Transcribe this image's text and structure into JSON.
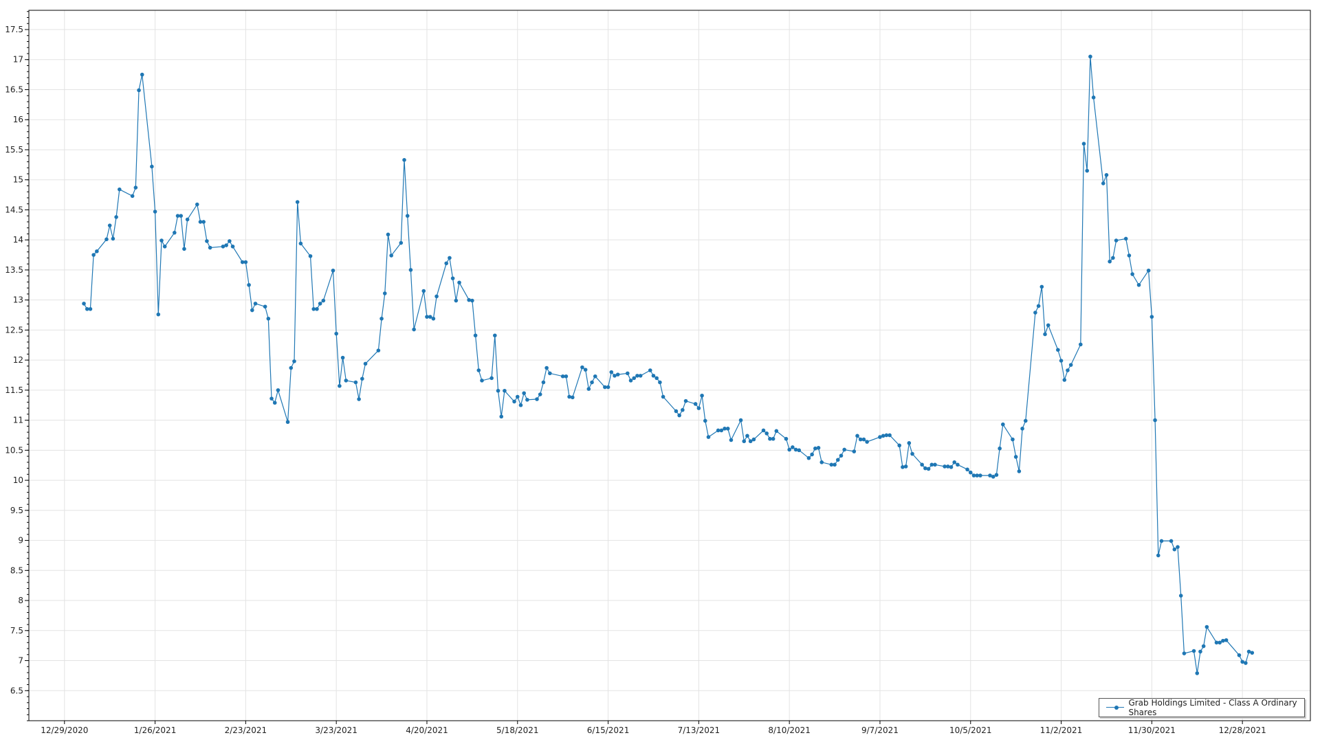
{
  "chart_data": {
    "type": "line",
    "title": "",
    "xlabel": "",
    "ylabel": "",
    "xlim": [
      "2020-12-18",
      "2022-01-18"
    ],
    "ylim": [
      6.0,
      17.82
    ],
    "grid": true,
    "legend_position": "bottom-right",
    "x_ticks": [
      "2020-12-29",
      "2021-01-26",
      "2021-02-23",
      "2021-03-23",
      "2021-04-20",
      "2021-05-18",
      "2021-06-15",
      "2021-07-13",
      "2021-08-10",
      "2021-09-07",
      "2021-10-05",
      "2021-11-02",
      "2021-11-30",
      "2021-12-28"
    ],
    "x_tick_labels": [
      "12/29/2020",
      "1/26/2021",
      "2/23/2021",
      "3/23/2021",
      "4/20/2021",
      "5/18/2021",
      "6/15/2021",
      "7/13/2021",
      "8/10/2021",
      "9/7/2021",
      "10/5/2021",
      "11/2/2021",
      "11/30/2021",
      "12/28/2021"
    ],
    "y_ticks": [
      6.5,
      7,
      7.5,
      8,
      8.5,
      9,
      9.5,
      10,
      10.5,
      11,
      11.5,
      12,
      12.5,
      13,
      13.5,
      14,
      14.5,
      15,
      15.5,
      16,
      16.5,
      17,
      17.5
    ],
    "y_tick_labels": [
      "6.5",
      "7",
      "7.5",
      "8",
      "8.5",
      "9",
      "9.5",
      "10",
      "10.5",
      "11",
      "11.5",
      "12",
      "12.5",
      "13",
      "13.5",
      "14",
      "14.5",
      "15",
      "15.5",
      "16",
      "16.5",
      "17",
      "17.5"
    ],
    "color": "#1f77b4",
    "series": [
      {
        "name": "Grab Holdings Limited - Class A Ordinary Shares",
        "x": [
          "2021-01-04",
          "2021-01-05",
          "2021-01-06",
          "2021-01-07",
          "2021-01-08",
          "2021-01-11",
          "2021-01-12",
          "2021-01-13",
          "2021-01-14",
          "2021-01-15",
          "2021-01-19",
          "2021-01-20",
          "2021-01-21",
          "2021-01-22",
          "2021-01-25",
          "2021-01-26",
          "2021-01-27",
          "2021-01-28",
          "2021-01-29",
          "2021-02-01",
          "2021-02-02",
          "2021-02-03",
          "2021-02-04",
          "2021-02-05",
          "2021-02-08",
          "2021-02-09",
          "2021-02-10",
          "2021-02-11",
          "2021-02-12",
          "2021-02-16",
          "2021-02-17",
          "2021-02-18",
          "2021-02-19",
          "2021-02-22",
          "2021-02-23",
          "2021-02-24",
          "2021-02-25",
          "2021-02-26",
          "2021-03-01",
          "2021-03-02",
          "2021-03-03",
          "2021-03-04",
          "2021-03-05",
          "2021-03-08",
          "2021-03-09",
          "2021-03-10",
          "2021-03-11",
          "2021-03-12",
          "2021-03-15",
          "2021-03-16",
          "2021-03-17",
          "2021-03-18",
          "2021-03-19",
          "2021-03-22",
          "2021-03-23",
          "2021-03-24",
          "2021-03-25",
          "2021-03-26",
          "2021-03-29",
          "2021-03-30",
          "2021-03-31",
          "2021-04-01",
          "2021-04-05",
          "2021-04-06",
          "2021-04-07",
          "2021-04-08",
          "2021-04-09",
          "2021-04-12",
          "2021-04-13",
          "2021-04-14",
          "2021-04-15",
          "2021-04-16",
          "2021-04-19",
          "2021-04-20",
          "2021-04-21",
          "2021-04-22",
          "2021-04-23",
          "2021-04-26",
          "2021-04-27",
          "2021-04-28",
          "2021-04-29",
          "2021-04-30",
          "2021-05-03",
          "2021-05-04",
          "2021-05-05",
          "2021-05-06",
          "2021-05-07",
          "2021-05-10",
          "2021-05-11",
          "2021-05-12",
          "2021-05-13",
          "2021-05-14",
          "2021-05-17",
          "2021-05-18",
          "2021-05-19",
          "2021-05-20",
          "2021-05-21",
          "2021-05-24",
          "2021-05-25",
          "2021-05-26",
          "2021-05-27",
          "2021-05-28",
          "2021-06-01",
          "2021-06-02",
          "2021-06-03",
          "2021-06-04",
          "2021-06-07",
          "2021-06-08",
          "2021-06-09",
          "2021-06-10",
          "2021-06-11",
          "2021-06-14",
          "2021-06-15",
          "2021-06-16",
          "2021-06-17",
          "2021-06-18",
          "2021-06-21",
          "2021-06-22",
          "2021-06-23",
          "2021-06-24",
          "2021-06-25",
          "2021-06-28",
          "2021-06-29",
          "2021-06-30",
          "2021-07-01",
          "2021-07-02",
          "2021-07-06",
          "2021-07-07",
          "2021-07-08",
          "2021-07-09",
          "2021-07-12",
          "2021-07-13",
          "2021-07-14",
          "2021-07-15",
          "2021-07-16",
          "2021-07-19",
          "2021-07-20",
          "2021-07-21",
          "2021-07-22",
          "2021-07-23",
          "2021-07-26",
          "2021-07-27",
          "2021-07-28",
          "2021-07-29",
          "2021-07-30",
          "2021-08-02",
          "2021-08-03",
          "2021-08-04",
          "2021-08-05",
          "2021-08-06",
          "2021-08-09",
          "2021-08-10",
          "2021-08-11",
          "2021-08-12",
          "2021-08-13",
          "2021-08-16",
          "2021-08-17",
          "2021-08-18",
          "2021-08-19",
          "2021-08-20",
          "2021-08-23",
          "2021-08-24",
          "2021-08-25",
          "2021-08-26",
          "2021-08-27",
          "2021-08-30",
          "2021-08-31",
          "2021-09-01",
          "2021-09-02",
          "2021-09-03",
          "2021-09-07",
          "2021-09-08",
          "2021-09-09",
          "2021-09-10",
          "2021-09-13",
          "2021-09-14",
          "2021-09-15",
          "2021-09-16",
          "2021-09-17",
          "2021-09-20",
          "2021-09-21",
          "2021-09-22",
          "2021-09-23",
          "2021-09-24",
          "2021-09-27",
          "2021-09-28",
          "2021-09-29",
          "2021-09-30",
          "2021-10-01",
          "2021-10-04",
          "2021-10-05",
          "2021-10-06",
          "2021-10-07",
          "2021-10-08",
          "2021-10-11",
          "2021-10-12",
          "2021-10-13",
          "2021-10-14",
          "2021-10-15",
          "2021-10-18",
          "2021-10-19",
          "2021-10-20",
          "2021-10-21",
          "2021-10-22",
          "2021-10-25",
          "2021-10-26",
          "2021-10-27",
          "2021-10-28",
          "2021-10-29",
          "2021-11-01",
          "2021-11-02",
          "2021-11-03",
          "2021-11-04",
          "2021-11-05",
          "2021-11-08",
          "2021-11-09",
          "2021-11-10",
          "2021-11-11",
          "2021-11-12",
          "2021-11-15",
          "2021-11-16",
          "2021-11-17",
          "2021-11-18",
          "2021-11-19",
          "2021-11-22",
          "2021-11-23",
          "2021-11-24",
          "2021-11-26",
          "2021-11-29",
          "2021-11-30",
          "2021-12-01",
          "2021-12-02",
          "2021-12-03",
          "2021-12-06",
          "2021-12-07",
          "2021-12-08",
          "2021-12-09",
          "2021-12-10",
          "2021-12-13",
          "2021-12-14",
          "2021-12-15",
          "2021-12-16",
          "2021-12-17",
          "2021-12-20",
          "2021-12-21",
          "2021-12-22",
          "2021-12-23",
          "2021-12-27",
          "2021-12-28",
          "2021-12-29",
          "2021-12-30",
          "2021-12-31"
        ],
        "values": [
          12.94,
          12.85,
          12.85,
          13.75,
          13.81,
          14.01,
          14.24,
          14.02,
          14.38,
          14.84,
          14.73,
          14.87,
          16.49,
          16.75,
          15.22,
          14.47,
          12.76,
          13.99,
          13.89,
          14.12,
          14.4,
          14.4,
          13.85,
          14.34,
          14.59,
          14.3,
          14.3,
          13.98,
          13.87,
          13.89,
          13.91,
          13.98,
          13.89,
          13.63,
          13.63,
          13.25,
          12.83,
          12.94,
          12.89,
          12.69,
          11.36,
          11.29,
          11.5,
          10.97,
          11.87,
          11.98,
          14.63,
          13.94,
          13.73,
          12.85,
          12.85,
          12.94,
          12.99,
          13.49,
          12.44,
          11.57,
          12.04,
          11.66,
          11.63,
          11.35,
          11.69,
          11.94,
          12.16,
          12.69,
          13.11,
          14.09,
          13.74,
          13.95,
          15.33,
          14.4,
          13.5,
          12.51,
          13.15,
          12.72,
          12.72,
          12.69,
          13.06,
          13.61,
          13.7,
          13.36,
          12.99,
          13.29,
          13.0,
          12.99,
          12.41,
          11.83,
          11.66,
          11.7,
          12.41,
          11.49,
          11.06,
          11.49,
          11.31,
          11.39,
          11.25,
          11.45,
          11.34,
          11.35,
          11.43,
          11.63,
          11.87,
          11.78,
          11.73,
          11.73,
          11.39,
          11.38,
          11.88,
          11.84,
          11.52,
          11.63,
          11.73,
          11.55,
          11.55,
          11.8,
          11.74,
          11.76,
          11.78,
          11.66,
          11.7,
          11.74,
          11.74,
          11.83,
          11.74,
          11.7,
          11.63,
          11.39,
          11.15,
          11.08,
          11.17,
          11.32,
          11.27,
          11.2,
          11.41,
          10.99,
          10.72,
          10.83,
          10.83,
          10.86,
          10.86,
          10.67,
          11.0,
          10.65,
          10.74,
          10.65,
          10.68,
          10.83,
          10.78,
          10.69,
          10.69,
          10.82,
          10.69,
          10.51,
          10.55,
          10.51,
          10.5,
          10.37,
          10.43,
          10.53,
          10.54,
          10.3,
          10.26,
          10.26,
          10.34,
          10.41,
          10.51,
          10.48,
          10.74,
          10.68,
          10.68,
          10.64,
          10.72,
          10.74,
          10.75,
          10.75,
          10.58,
          10.22,
          10.23,
          10.62,
          10.44,
          10.26,
          10.2,
          10.19,
          10.26,
          10.26,
          10.23,
          10.23,
          10.22,
          10.3,
          10.26,
          10.18,
          10.13,
          10.08,
          10.08,
          10.08,
          10.08,
          10.06,
          10.09,
          10.53,
          10.93,
          10.68,
          10.39,
          10.15,
          10.86,
          10.99,
          12.79,
          12.9,
          13.22,
          12.43,
          12.58,
          12.17,
          11.99,
          11.67,
          11.83,
          11.92,
          12.26,
          15.6,
          15.15,
          17.05,
          16.37,
          14.94,
          15.08,
          13.64,
          13.7,
          13.99,
          14.02,
          13.74,
          13.43,
          13.25,
          13.49,
          12.72,
          11.0,
          8.75,
          8.99,
          8.99,
          8.85,
          8.89,
          8.08,
          7.12,
          7.16,
          6.79,
          7.15,
          7.24,
          7.56,
          7.3,
          7.3,
          7.33,
          7.34,
          7.09,
          6.98,
          6.96,
          7.15,
          7.13
        ]
      }
    ]
  }
}
